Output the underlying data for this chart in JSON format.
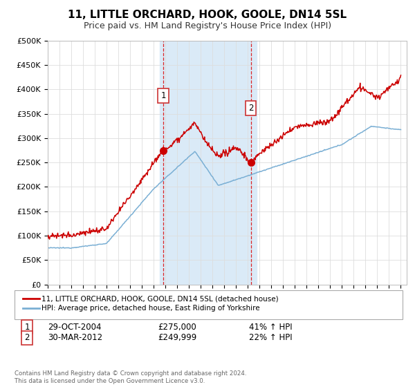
{
  "title": "11, LITTLE ORCHARD, HOOK, GOOLE, DN14 5SL",
  "subtitle": "Price paid vs. HM Land Registry's House Price Index (HPI)",
  "ylim": [
    0,
    500000
  ],
  "yticks": [
    0,
    50000,
    100000,
    150000,
    200000,
    250000,
    300000,
    350000,
    400000,
    450000,
    500000
  ],
  "ytick_labels": [
    "£0",
    "£50K",
    "£100K",
    "£150K",
    "£200K",
    "£250K",
    "£300K",
    "£350K",
    "£400K",
    "£450K",
    "£500K"
  ],
  "sale1_x": 2004.83,
  "sale1_y": 275000,
  "sale2_x": 2012.25,
  "sale2_y": 249999,
  "sale1_date": "29-OCT-2004",
  "sale1_price": "£275,000",
  "sale1_hpi": "41% ↑ HPI",
  "sale2_date": "30-MAR-2012",
  "sale2_price": "£249,999",
  "sale2_hpi": "22% ↑ HPI",
  "highlight_color": "#daeaf7",
  "highlight_x_start": 2004.5,
  "highlight_x_end": 2012.75,
  "red_line_color": "#cc0000",
  "blue_line_color": "#7aafd4",
  "grid_color": "#dddddd",
  "background_color": "#ffffff",
  "legend_label_red": "11, LITTLE ORCHARD, HOOK, GOOLE, DN14 5SL (detached house)",
  "legend_label_blue": "HPI: Average price, detached house, East Riding of Yorkshire",
  "footnote": "Contains HM Land Registry data © Crown copyright and database right 2024.\nThis data is licensed under the Open Government Licence v3.0.",
  "xmin": 1995,
  "xmax": 2025.5,
  "title_fontsize": 11,
  "subtitle_fontsize": 9
}
